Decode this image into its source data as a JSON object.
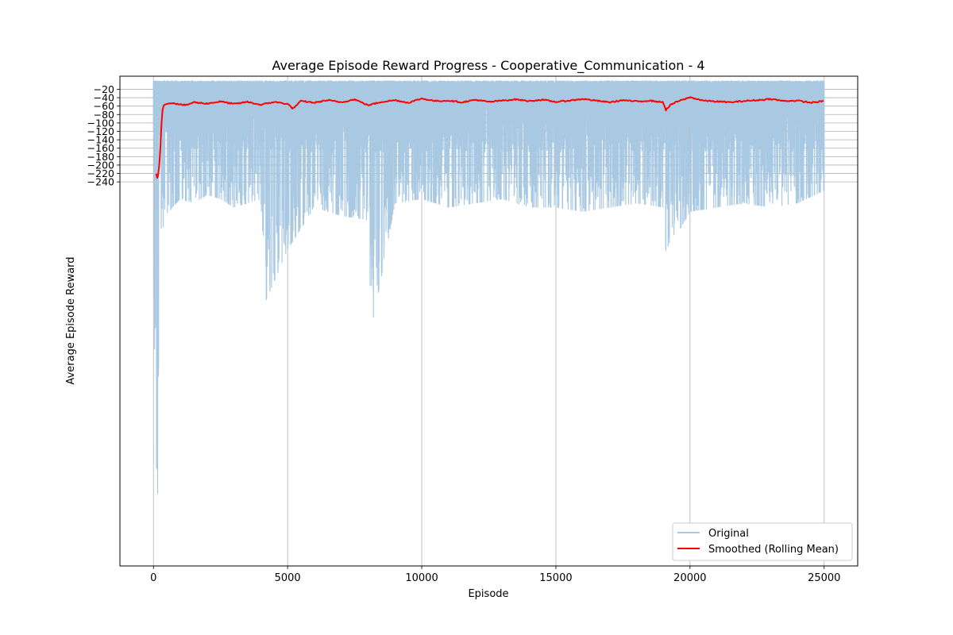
{
  "chart_data": {
    "type": "line",
    "title": "Average Episode Reward Progress - Cooperative_Communication - 4",
    "xlabel": "Episode",
    "ylabel": "Average Episode Reward",
    "xlim": [
      -1250,
      26250
    ],
    "ylim": [
      -1152,
      11
    ],
    "xticks": [
      0,
      5000,
      10000,
      15000,
      20000,
      25000
    ],
    "xtick_labels": [
      "0",
      "5000",
      "10000",
      "15000",
      "20000",
      "25000"
    ],
    "yticks": [
      -20,
      -40,
      -60,
      -80,
      -100,
      -120,
      -140,
      -160,
      -180,
      -200,
      -220,
      -240
    ],
    "ytick_labels": [
      "−20",
      "−40",
      "−60",
      "−80",
      "−100",
      "−120",
      "−140",
      "−160",
      "−180",
      "−200",
      "−220",
      "−240"
    ],
    "grid": true,
    "legend_position": "lower-right",
    "series": [
      {
        "name": "Original",
        "color": "#a9c9e3",
        "style": "noisy-band",
        "upper_envelope": -3,
        "x": [
          0,
          50,
          100,
          150,
          200,
          250,
          300,
          400,
          500,
          700,
          1000,
          1500,
          2000,
          2500,
          3000,
          3500,
          4000,
          4200,
          5000,
          6000,
          7000,
          8000,
          8100,
          9000,
          10000,
          11000,
          12000,
          13000,
          14000,
          15000,
          16000,
          17000,
          18000,
          19000,
          19100,
          20000,
          21000,
          22000,
          23000,
          24000,
          25000
        ],
        "lower_envelope": [
          -330,
          -860,
          -1060,
          -1100,
          -800,
          -620,
          -360,
          -340,
          -320,
          -300,
          -280,
          -290,
          -270,
          -280,
          -300,
          -290,
          -280,
          -520,
          -400,
          -300,
          -320,
          -330,
          -600,
          -290,
          -280,
          -300,
          -290,
          -280,
          -300,
          -300,
          -310,
          -300,
          -290,
          -300,
          -410,
          -310,
          -300,
          -290,
          -300,
          -290,
          -260
        ]
      },
      {
        "name": "Smoothed (Rolling Mean)",
        "color": "#ff0000",
        "x": [
          100,
          150,
          200,
          250,
          300,
          350,
          400,
          500,
          700,
          900,
          1200,
          1500,
          2000,
          2500,
          3000,
          3500,
          4000,
          4500,
          5000,
          5200,
          5500,
          6000,
          6500,
          7000,
          7500,
          8000,
          8500,
          9000,
          9500,
          10000,
          10500,
          11000,
          11500,
          12000,
          12500,
          13000,
          13500,
          14000,
          14500,
          15000,
          15500,
          16000,
          16500,
          17000,
          17500,
          18000,
          18500,
          19000,
          19100,
          19300,
          19500,
          20000,
          20500,
          21000,
          21500,
          22000,
          22500,
          23000,
          23500,
          24000,
          24500,
          25000
        ],
        "y": [
          -220,
          -233,
          -215,
          -170,
          -100,
          -62,
          -57,
          -55,
          -52,
          -55,
          -58,
          -51,
          -54,
          -49,
          -55,
          -50,
          -57,
          -50,
          -55,
          -66,
          -48,
          -52,
          -46,
          -51,
          -44,
          -58,
          -50,
          -46,
          -52,
          -42,
          -48,
          -47,
          -51,
          -45,
          -50,
          -47,
          -44,
          -48,
          -45,
          -50,
          -47,
          -43,
          -47,
          -51,
          -46,
          -49,
          -47,
          -51,
          -69,
          -56,
          -50,
          -39,
          -47,
          -49,
          -51,
          -48,
          -46,
          -43,
          -48,
          -47,
          -52,
          -48
        ]
      }
    ]
  }
}
